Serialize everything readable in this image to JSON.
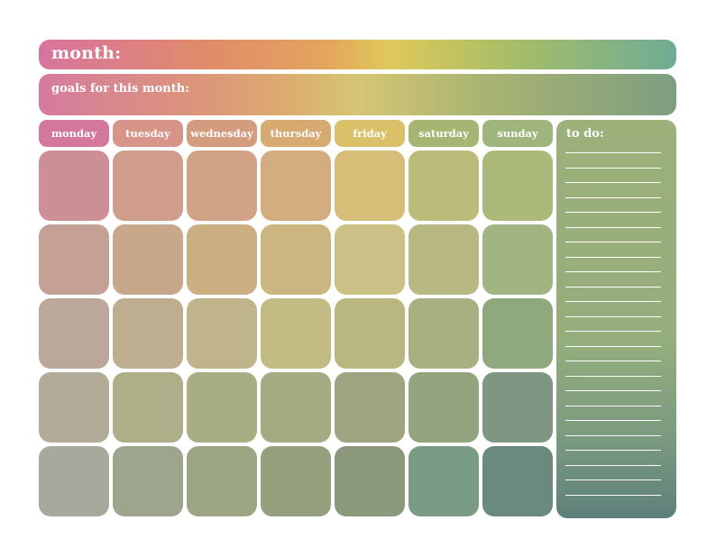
{
  "header": {
    "month_label": "month:"
  },
  "goals": {
    "label": "goals for this month:"
  },
  "weekdays": [
    "monday",
    "tuesday",
    "wednesday",
    "thursday",
    "friday",
    "saturday",
    "sunday"
  ],
  "todo": {
    "label": "to do:",
    "line_count": 24
  },
  "colors": {
    "weekday_headers": [
      "#d3789b",
      "#d69588",
      "#d49c7e",
      "#d7aa72",
      "#d9c069",
      "#a5b672",
      "#a0b57c"
    ],
    "calendar_rows": [
      [
        "#cd8e96",
        "#d09c8b",
        "#d2a286",
        "#d3ad7f",
        "#d6be79",
        "#bcbc7a",
        "#abb97b"
      ],
      [
        "#c4a095",
        "#c8a88a",
        "#cbaf83",
        "#cbb681",
        "#cbc186",
        "#b7b882",
        "#a1b481"
      ],
      [
        "#bca89b",
        "#bfad8f",
        "#c0b58a",
        "#c2bc84",
        "#b9b77f",
        "#a6b081",
        "#8fa87d"
      ],
      [
        "#b1ab98",
        "#aeaf88",
        "#a7ae83",
        "#a4aa82",
        "#a0a480",
        "#93a47e",
        "#7e9682"
      ],
      [
        "#a7a99d",
        "#9da68d",
        "#9ba583",
        "#949f7d",
        "#8c987c",
        "#7b9c84",
        "#6a8a7e"
      ]
    ]
  }
}
